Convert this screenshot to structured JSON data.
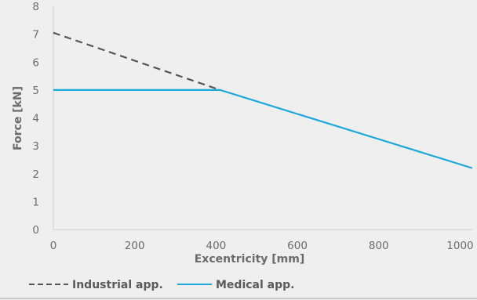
{
  "chart_data": {
    "type": "line",
    "xlabel": "Excentricity [mm]",
    "ylabel": "Force [kN]",
    "xlim": [
      0,
      1030
    ],
    "ylim": [
      0,
      8
    ],
    "x_ticks": [
      0,
      200,
      400,
      600,
      800,
      1000
    ],
    "y_ticks": [
      0,
      1,
      2,
      3,
      4,
      5,
      6,
      7,
      8
    ],
    "grid": false,
    "legend": "bottom",
    "series": [
      {
        "name": "Industrial app.",
        "style": "dashed",
        "color": "#555555",
        "x": [
          0,
          410
        ],
        "y": [
          7.05,
          5.0
        ]
      },
      {
        "name": "Medical app.",
        "style": "solid",
        "color": "#1ba9dc",
        "x": [
          0,
          410,
          1030
        ],
        "y": [
          5.0,
          5.0,
          2.2
        ]
      }
    ]
  }
}
